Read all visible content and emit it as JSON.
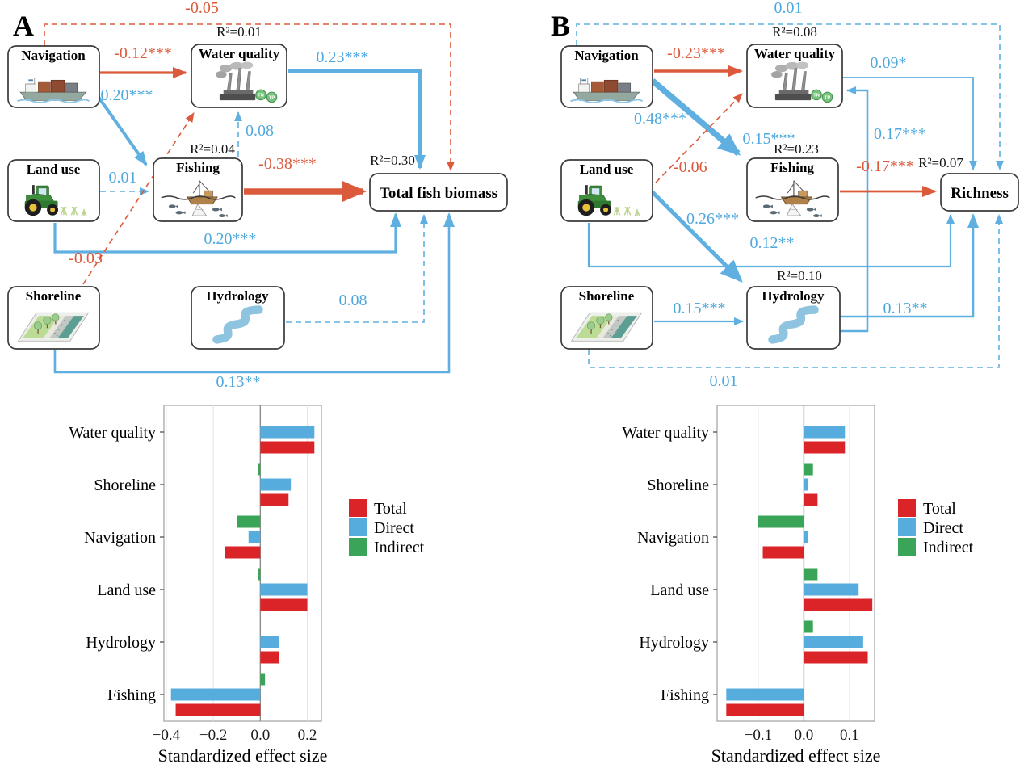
{
  "figure": {
    "panel_a_letter": "A",
    "panel_b_letter": "B"
  },
  "colors": {
    "path_positive_blue": "#5FB0E1",
    "path_negative_red": "#DC5A3C",
    "bar_total_red": "#DB2428",
    "bar_direct_blue": "#56ACDC",
    "bar_indirect_green": "#3AA558"
  },
  "icons": {
    "water_quality_badges": [
      "TN",
      "TP"
    ]
  },
  "semA": {
    "nodes": {
      "navigation": "Navigation",
      "water_quality": "Water quality",
      "land_use": "Land use",
      "fishing": "Fishing",
      "shoreline": "Shoreline",
      "hydrology": "Hydrology",
      "outcome": "Total fish biomass"
    },
    "r2": {
      "water_quality": "R²=0.01",
      "fishing": "R²=0.04",
      "outcome": "R²=0.30"
    },
    "paths": {
      "navigation_outcome": "-0.05",
      "navigation_water_quality": "-0.12***",
      "navigation_fishing": "0.20***",
      "water_quality_outcome": "0.23***",
      "fishing_water_quality": "0.08",
      "fishing_outcome": "-0.38***",
      "land_use_fishing": "0.01",
      "land_use_outcome": "0.20***",
      "shoreline_water_quality": "-0.03",
      "hydrology_outcome": "0.08",
      "shoreline_outcome": "0.13**"
    }
  },
  "semB": {
    "nodes": {
      "navigation": "Navigation",
      "water_quality": "Water quality",
      "land_use": "Land use",
      "fishing": "Fishing",
      "shoreline": "Shoreline",
      "hydrology": "Hydrology",
      "outcome": "Richness"
    },
    "r2": {
      "water_quality": "R²=0.08",
      "fishing": "R²=0.23",
      "hydrology": "R²=0.10",
      "outcome": "R²=0.07"
    },
    "paths": {
      "navigation_outcome": "0.01",
      "navigation_water_quality": "-0.23***",
      "navigation_fishing": "0.48***",
      "land_use_water_quality": "-0.06",
      "water_quality_label_below": "0.15***",
      "hydrology_water_quality": "0.17***",
      "water_quality_outcome": "0.09*",
      "fishing_outcome": "-0.17***",
      "land_use_hydrology": "0.26***",
      "land_use_outcome": "0.12**",
      "shoreline_hydrology": "0.15***",
      "hydrology_outcome": "0.13**",
      "shoreline_outcome": "0.01"
    }
  },
  "chart_data": [
    {
      "panel": "A",
      "type": "bar",
      "orientation": "horizontal",
      "xlabel": "Standardized effect size",
      "categories": [
        "Water quality",
        "Shoreline",
        "Navigation",
        "Land use",
        "Hydrology",
        "Fishing"
      ],
      "series": [
        {
          "name": "Total",
          "color": "#DB2428",
          "values": [
            0.23,
            0.12,
            -0.15,
            0.2,
            0.08,
            -0.36
          ]
        },
        {
          "name": "Direct",
          "color": "#56ACDC",
          "values": [
            0.23,
            0.13,
            -0.05,
            0.2,
            0.08,
            -0.38
          ]
        },
        {
          "name": "Indirect",
          "color": "#3AA558",
          "values": [
            0.0,
            -0.01,
            -0.1,
            -0.01,
            0.0,
            0.02
          ]
        }
      ],
      "xticks": [
        -0.4,
        -0.2,
        0.0,
        0.2
      ],
      "xlim": [
        -0.41,
        0.26
      ],
      "grid": true,
      "legend_position": "right"
    },
    {
      "panel": "B",
      "type": "bar",
      "orientation": "horizontal",
      "xlabel": "Standardized effect size",
      "categories": [
        "Water quality",
        "Shoreline",
        "Navigation",
        "Land use",
        "Hydrology",
        "Fishing"
      ],
      "series": [
        {
          "name": "Total",
          "color": "#DB2428",
          "values": [
            0.09,
            0.03,
            -0.09,
            0.15,
            0.14,
            -0.17
          ]
        },
        {
          "name": "Direct",
          "color": "#56ACDC",
          "values": [
            0.09,
            0.01,
            0.01,
            0.12,
            0.13,
            -0.17
          ]
        },
        {
          "name": "Indirect",
          "color": "#3AA558",
          "values": [
            0.0,
            0.02,
            -0.1,
            0.03,
            0.02,
            0.0
          ]
        }
      ],
      "xticks": [
        -0.1,
        0.0,
        0.1
      ],
      "xlim": [
        -0.19,
        0.155
      ],
      "grid": true,
      "legend_position": "right"
    }
  ]
}
